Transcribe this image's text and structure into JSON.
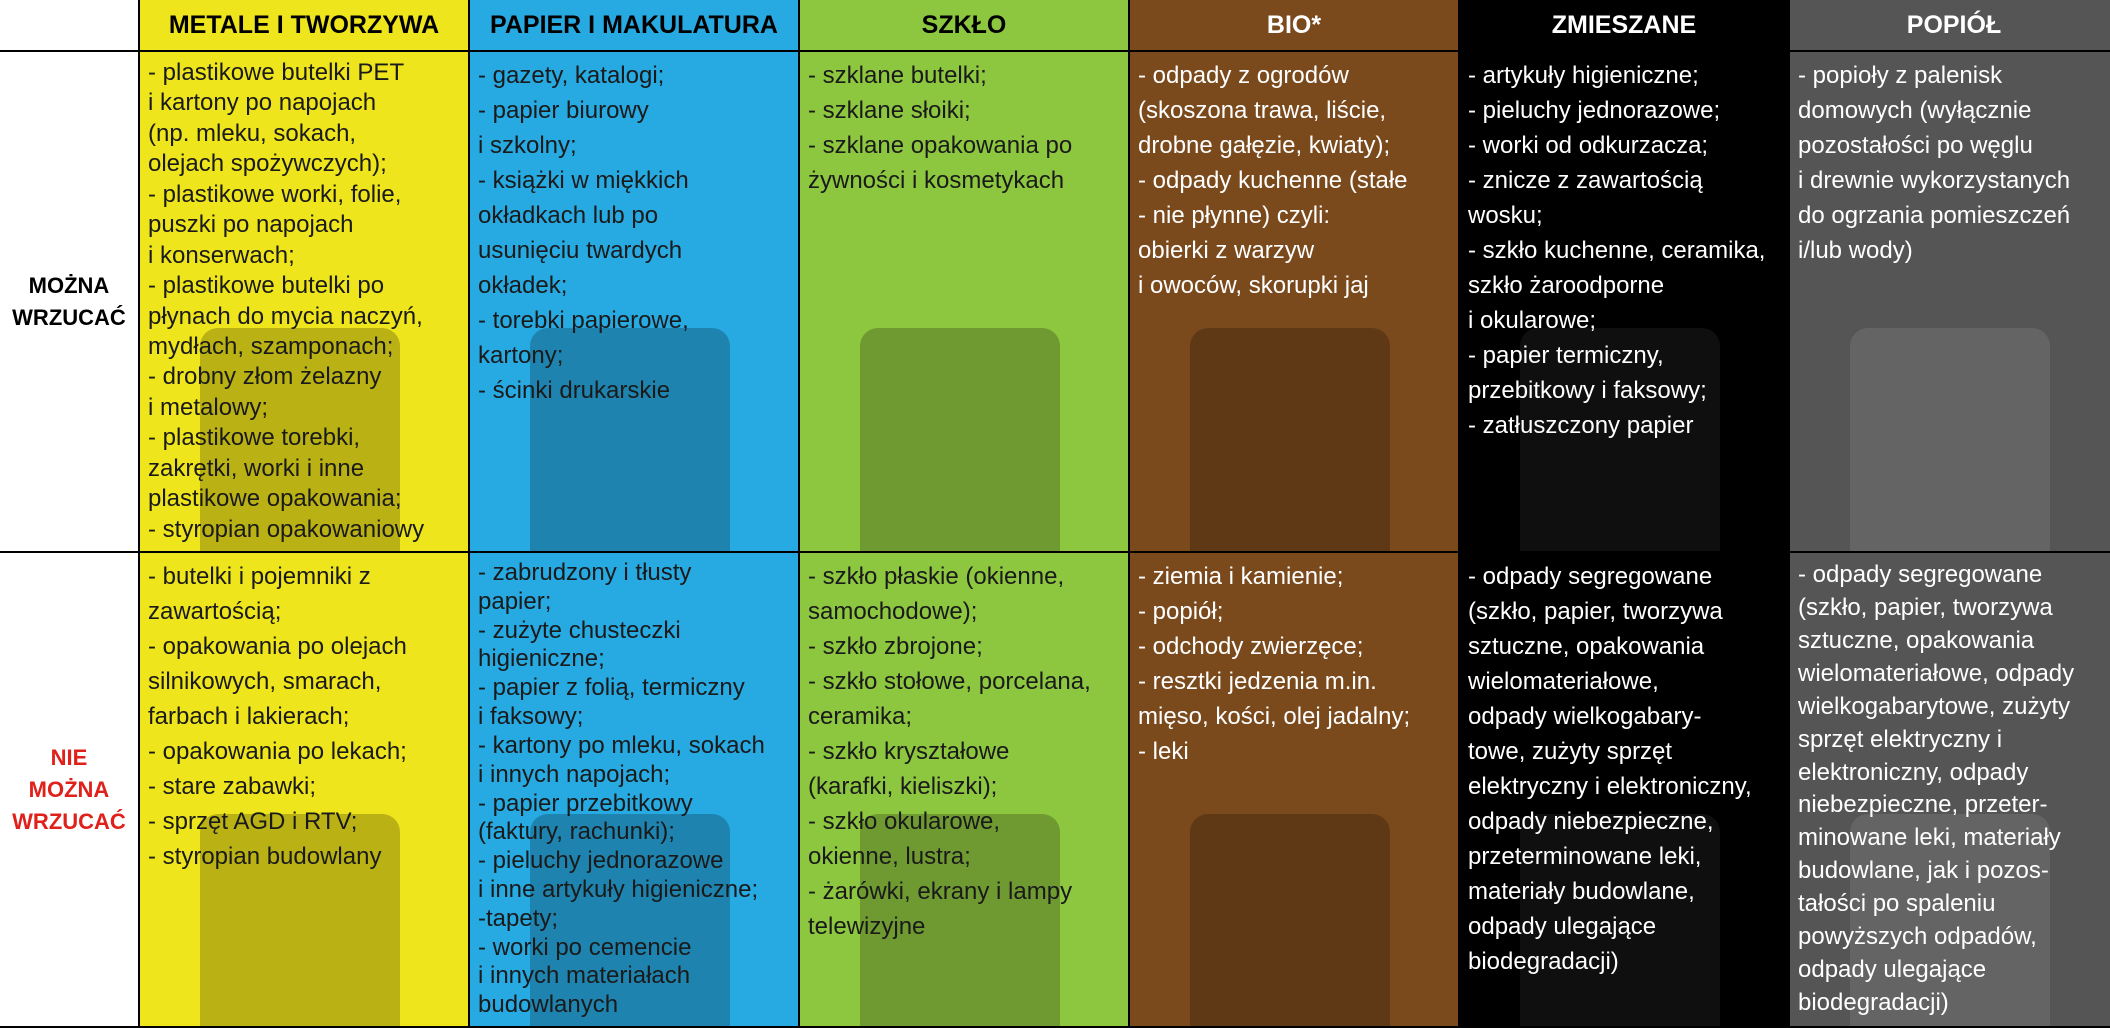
{
  "header": {
    "columns": [
      "METALE I TWORZYWA",
      "PAPIER I MAKULATURA",
      "SZKŁO",
      "BIO*",
      "ZMIESZANE",
      "POPIÓŁ"
    ]
  },
  "rows": [
    {
      "label": [
        "MOŻNA",
        "WRZUCAĆ"
      ],
      "cells": [
        [
          "- plastikowe butelki PET",
          "i kartony po napojach",
          "(np. mleku, sokach,",
          "olejach spożywczych);",
          "- plastikowe worki, folie,",
          "puszki po napojach",
          "i konserwach;",
          "- plastikowe butelki po",
          "płynach do mycia naczyń,",
          "mydłach, szamponach;",
          "- drobny złom żelazny",
          "i metalowy;",
          "- plastikowe torebki,",
          "zakrętki, worki i inne",
          "plastikowe opakowania;",
          "- styropian opakowaniowy"
        ],
        [
          "- gazety, katalogi;",
          "- papier biurowy",
          "i szkolny;",
          "- książki w miękkich",
          "okładkach lub po",
          "usunięciu twardych",
          "okładek;",
          "- torebki papierowe,",
          "kartony;",
          "- ścinki drukarskie"
        ],
        [
          "- szklane butelki;",
          "- szklane słoiki;",
          "- szklane opakowania po",
          "żywności i kosmetykach"
        ],
        [
          "- odpady z ogrodów",
          "(skoszona trawa, liście,",
          "drobne gałęzie, kwiaty);",
          "- odpady kuchenne (stałe",
          "- nie płynne) czyli:",
          "obierki z warzyw",
          "i owoców, skorupki jaj"
        ],
        [
          "- artykuły higieniczne;",
          "- pieluchy jednorazowe;",
          "- worki od odkurzacza;",
          "- znicze z zawartością",
          "wosku;",
          "- szkło kuchenne, ceramika,",
          "szkło żaroodporne",
          "i okularowe;",
          "- papier termiczny,",
          "przebitkowy i faksowy;",
          "- zatłuszczony papier"
        ],
        [
          "- popioły z palenisk",
          "domowych (wyłącznie",
          "pozostałości po węglu",
          "i drewnie wykorzystanych",
          "do ogrzania pomieszczeń",
          "i/lub wody)"
        ]
      ]
    },
    {
      "label": [
        "NIE",
        "MOŻNA",
        "WRZUCAĆ"
      ],
      "cells": [
        [
          "- butelki i pojemniki z",
          "zawartością;",
          "- opakowania po olejach",
          "silnikowych, smarach,",
          "farbach i lakierach;",
          "- opakowania po lekach;",
          "- stare zabawki;",
          "- sprzęt AGD i RTV;",
          "- styropian budowlany"
        ],
        [
          "- zabrudzony i tłusty",
          "papier;",
          "- zużyte chusteczki",
          "higieniczne;",
          "- papier z folią, termiczny",
          "i faksowy;",
          "- kartony po mleku, sokach",
          "i innych napojach;",
          "- papier przebitkowy",
          "(faktury, rachunki);",
          "- pieluchy jednorazowe",
          "i inne artykuły higieniczne;",
          "-tapety;",
          "- worki po cemencie",
          "i innych materiałach",
          "budowlanych"
        ],
        [
          "- szkło płaskie (okienne,",
          "samochodowe);",
          "- szkło zbrojone;",
          "- szkło stołowe, porcelana,",
          "ceramika;",
          "- szkło kryształowe",
          "(karafki, kieliszki);",
          "- szkło okularowe,",
          "okienne, lustra;",
          "- żarówki, ekrany i lampy",
          "telewizyjne"
        ],
        [
          "- ziemia i kamienie;",
          "- popiół;",
          "- odchody zwierzęce;",
          "- resztki jedzenia m.in.",
          "mięso, kości, olej jadalny;",
          "- leki"
        ],
        [
          "- odpady segregowane",
          "(szkło, papier, tworzywa",
          "sztuczne, opakowania",
          "wielomateriałowe,",
          "odpady wielkogabary-",
          "towe, zużyty sprzęt",
          "elektryczny i elektroniczny,",
          "odpady niebezpieczne,",
          "przeterminowane leki,",
          "materiały budowlane,",
          "odpady ulegające",
          "biodegradacji)"
        ],
        [
          "- odpady segregowane",
          "(szkło, papier, tworzywa",
          "sztuczne, opakowania",
          "wielomateriałowe, odpady",
          "wielkogabarytowe, zużyty",
          "sprzęt elektryczny i",
          "elektroniczny, odpady",
          "niebezpieczne, przeter-",
          "minowane leki, materiały",
          "budowlane, jak i pozos-",
          "tałości po spaleniu",
          "powyższych odpadów,",
          "odpady ulegające",
          "biodegradacji)"
        ]
      ]
    }
  ]
}
